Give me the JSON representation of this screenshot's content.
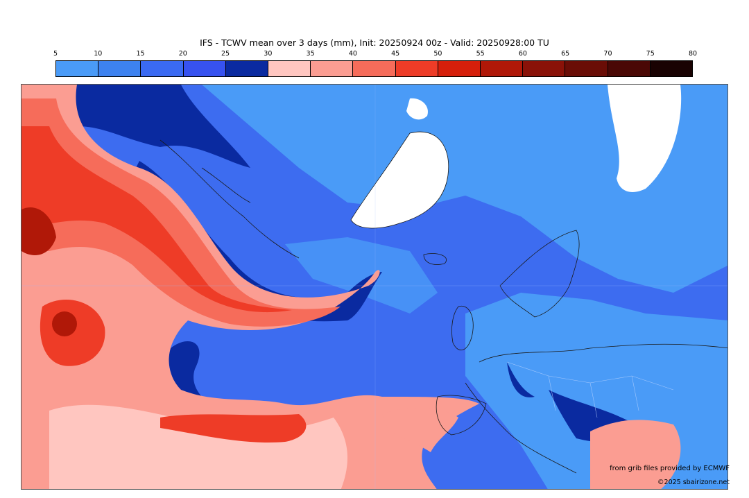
{
  "title": "IFS - TCWV mean over 3 days (mm), Init: 20250924 00z - Valid: 20250928:00 TU",
  "colorbar": {
    "tick_labels": [
      "5",
      "10",
      "15",
      "20",
      "25",
      "30",
      "35",
      "40",
      "45",
      "50",
      "55",
      "60",
      "65",
      "70",
      "75",
      "80"
    ],
    "colors": [
      "#4a9bf7",
      "#3d82f0",
      "#3a6af2",
      "#3752f0",
      "#0a2aa0",
      "#ffc6c0",
      "#fb9d92",
      "#f66c5a",
      "#ee3c27",
      "#d61f0b",
      "#b01808",
      "#8a1208",
      "#6a0d06",
      "#4a0805",
      "#190202"
    ]
  },
  "credits": {
    "source": "from grib files provided by ECMWF",
    "copyright": "©2025 sbairizone.net"
  },
  "map_colors": {
    "ocean_base": "#3d6cf0",
    "light_blue": "#4a9bf7",
    "deep_blue": "#0a2aa0",
    "ice": "#ffffff",
    "pink": "#ffc6c0",
    "salmon": "#fb9d92",
    "orange_red": "#f66c5a",
    "red": "#ee3c27",
    "dark_red": "#b01808",
    "coast": "#1a1a1a"
  }
}
